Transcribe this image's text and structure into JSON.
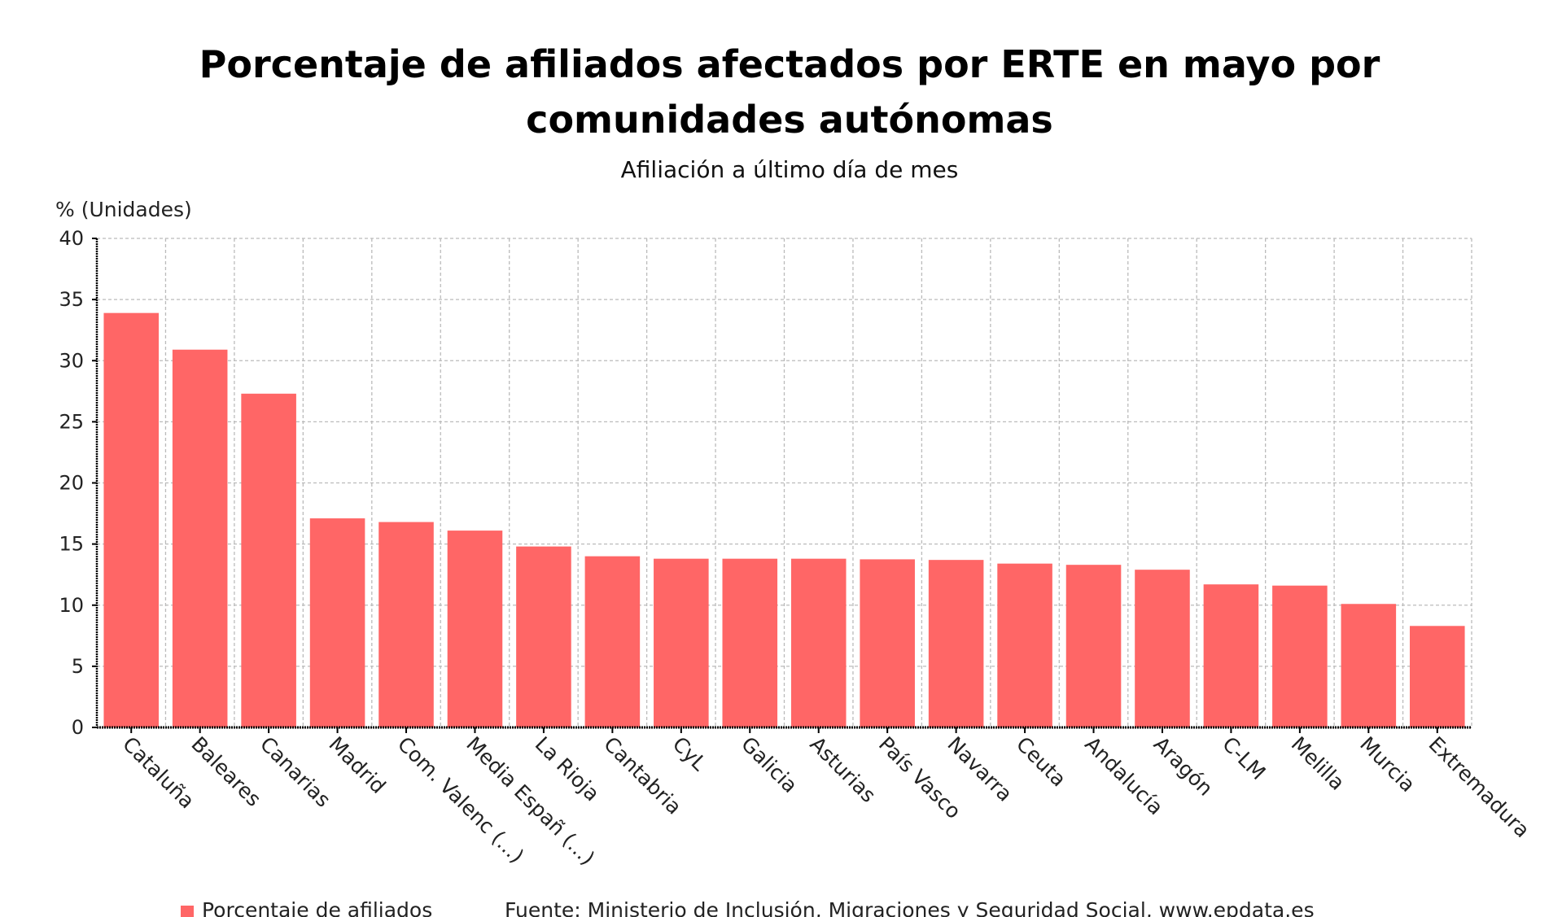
{
  "chart_data": {
    "type": "bar",
    "title": "Porcentaje de afiliados afectados por ERTE en mayo por comunidades autónomas",
    "title_lines": [
      "Porcentaje de afiliados afectados por ERTE en mayo por",
      "comunidades autónomas"
    ],
    "subtitle": "Afiliación a último día de mes",
    "ylabel": "% (Unidades)",
    "xlabel": "",
    "ylim": [
      0,
      40
    ],
    "yticks": [
      0,
      5,
      10,
      15,
      20,
      25,
      30,
      35,
      40
    ],
    "grid": true,
    "legend_position": "bottom-left",
    "categories": [
      "Cataluña",
      "Baleares",
      "Canarias",
      "Madrid",
      "Com. Valenc (...)",
      "Media Españ (...)",
      "La Rioja",
      "Cantabria",
      "CyL",
      "Galicia",
      "Asturias",
      "País Vasco",
      "Navarra",
      "Ceuta",
      "Andalucía",
      "Aragón",
      "C-LM",
      "Melilla",
      "Murcia",
      "Extremadura"
    ],
    "series": [
      {
        "name": "Porcentaje de afiliados",
        "color": "#ff6666",
        "values": [
          33.9,
          30.9,
          27.3,
          17.1,
          16.8,
          16.1,
          14.8,
          14.0,
          13.8,
          13.8,
          13.8,
          13.75,
          13.7,
          13.4,
          13.3,
          12.9,
          11.7,
          11.6,
          10.1,
          8.3
        ]
      }
    ],
    "source": "Fuente: Ministerio de Inclusión, Migraciones y Seguridad Social, www.epdata.es"
  }
}
